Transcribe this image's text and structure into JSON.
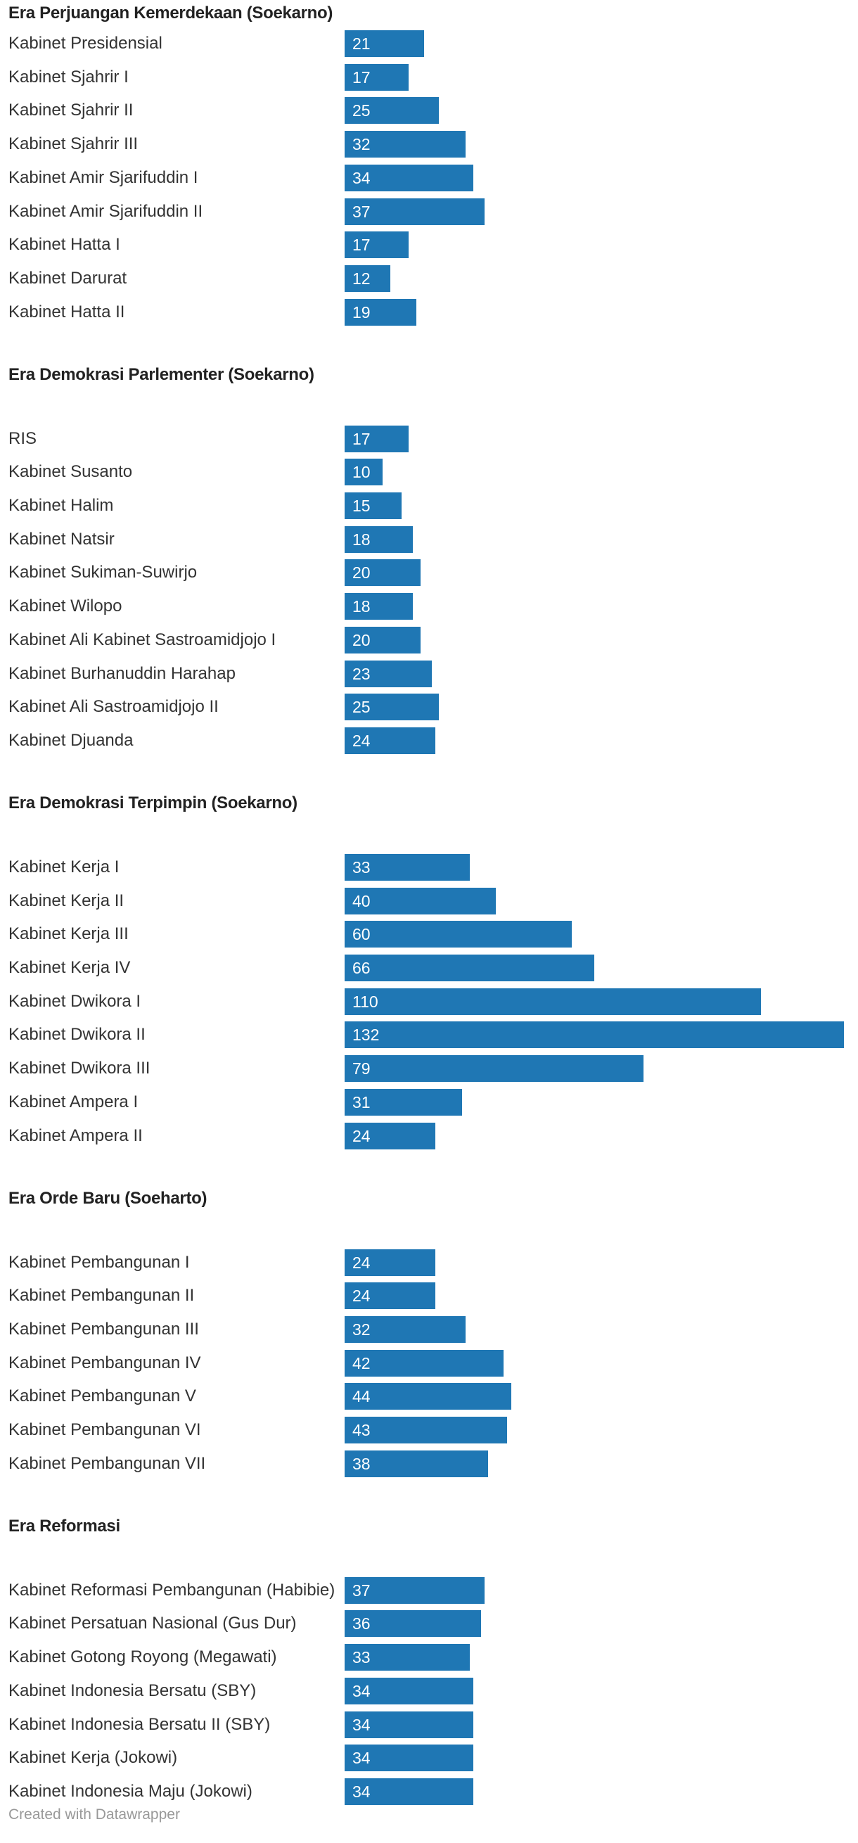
{
  "chart_data": {
    "type": "bar",
    "orientation": "horizontal",
    "value_labels": "inside bar",
    "bar_color": "#1f77b4",
    "groups": [
      {
        "title": "Era Perjuangan Kemerdekaan (Soekarno)",
        "categories": [
          "Kabinet Presidensial",
          "Kabinet Sjahrir I",
          "Kabinet Sjahrir II",
          "Kabinet Sjahrir III",
          "Kabinet Amir Sjarifuddin I",
          "Kabinet Amir Sjarifuddin II",
          "Kabinet Hatta I",
          "Kabinet Darurat",
          "Kabinet Hatta II"
        ],
        "values": [
          21,
          17,
          25,
          32,
          34,
          37,
          17,
          12,
          19
        ]
      },
      {
        "title": "Era Demokrasi Parlementer (Soekarno)",
        "categories": [
          "RIS",
          "Kabinet Susanto",
          "Kabinet Halim",
          "Kabinet Natsir",
          "Kabinet Sukiman-Suwirjo",
          "Kabinet Wilopo",
          "Kabinet Ali Kabinet Sastroamidjojo I",
          "Kabinet Burhanuddin Harahap",
          "Kabinet Ali Sastroamidjojo II",
          "Kabinet Djuanda"
        ],
        "values": [
          17,
          10,
          15,
          18,
          20,
          18,
          20,
          23,
          25,
          24
        ]
      },
      {
        "title": "Era Demokrasi Terpimpin (Soekarno)",
        "categories": [
          "Kabinet Kerja I",
          "Kabinet Kerja II",
          "Kabinet Kerja III",
          "Kabinet Kerja IV",
          "Kabinet Dwikora I",
          "Kabinet Dwikora II",
          "Kabinet Dwikora III",
          "Kabinet Ampera I",
          "Kabinet Ampera II"
        ],
        "values": [
          33,
          40,
          60,
          66,
          110,
          132,
          79,
          31,
          24
        ]
      },
      {
        "title": "Era Orde Baru (Soeharto)",
        "categories": [
          "Kabinet Pembangunan I",
          "Kabinet Pembangunan II",
          "Kabinet Pembangunan III",
          "Kabinet Pembangunan IV",
          "Kabinet Pembangunan V",
          "Kabinet Pembangunan VI",
          "Kabinet Pembangunan VII"
        ],
        "values": [
          24,
          24,
          32,
          42,
          44,
          43,
          38
        ]
      },
      {
        "title": "Era Reformasi",
        "categories": [
          "Kabinet Reformasi Pembangunan (Habibie)",
          "Kabinet Persatuan Nasional  (Gus Dur)",
          "Kabinet Gotong Royong (Megawati)",
          "Kabinet Indonesia Bersatu (SBY)",
          "Kabinet Indonesia Bersatu II (SBY)",
          "Kabinet Kerja (Jokowi)",
          "Kabinet Indonesia Maju (Jokowi)"
        ],
        "values": [
          37,
          36,
          33,
          34,
          34,
          34,
          34
        ]
      }
    ],
    "xlim": [
      0,
      132
    ]
  },
  "footer": {
    "credit": "Created with Datawrapper"
  }
}
